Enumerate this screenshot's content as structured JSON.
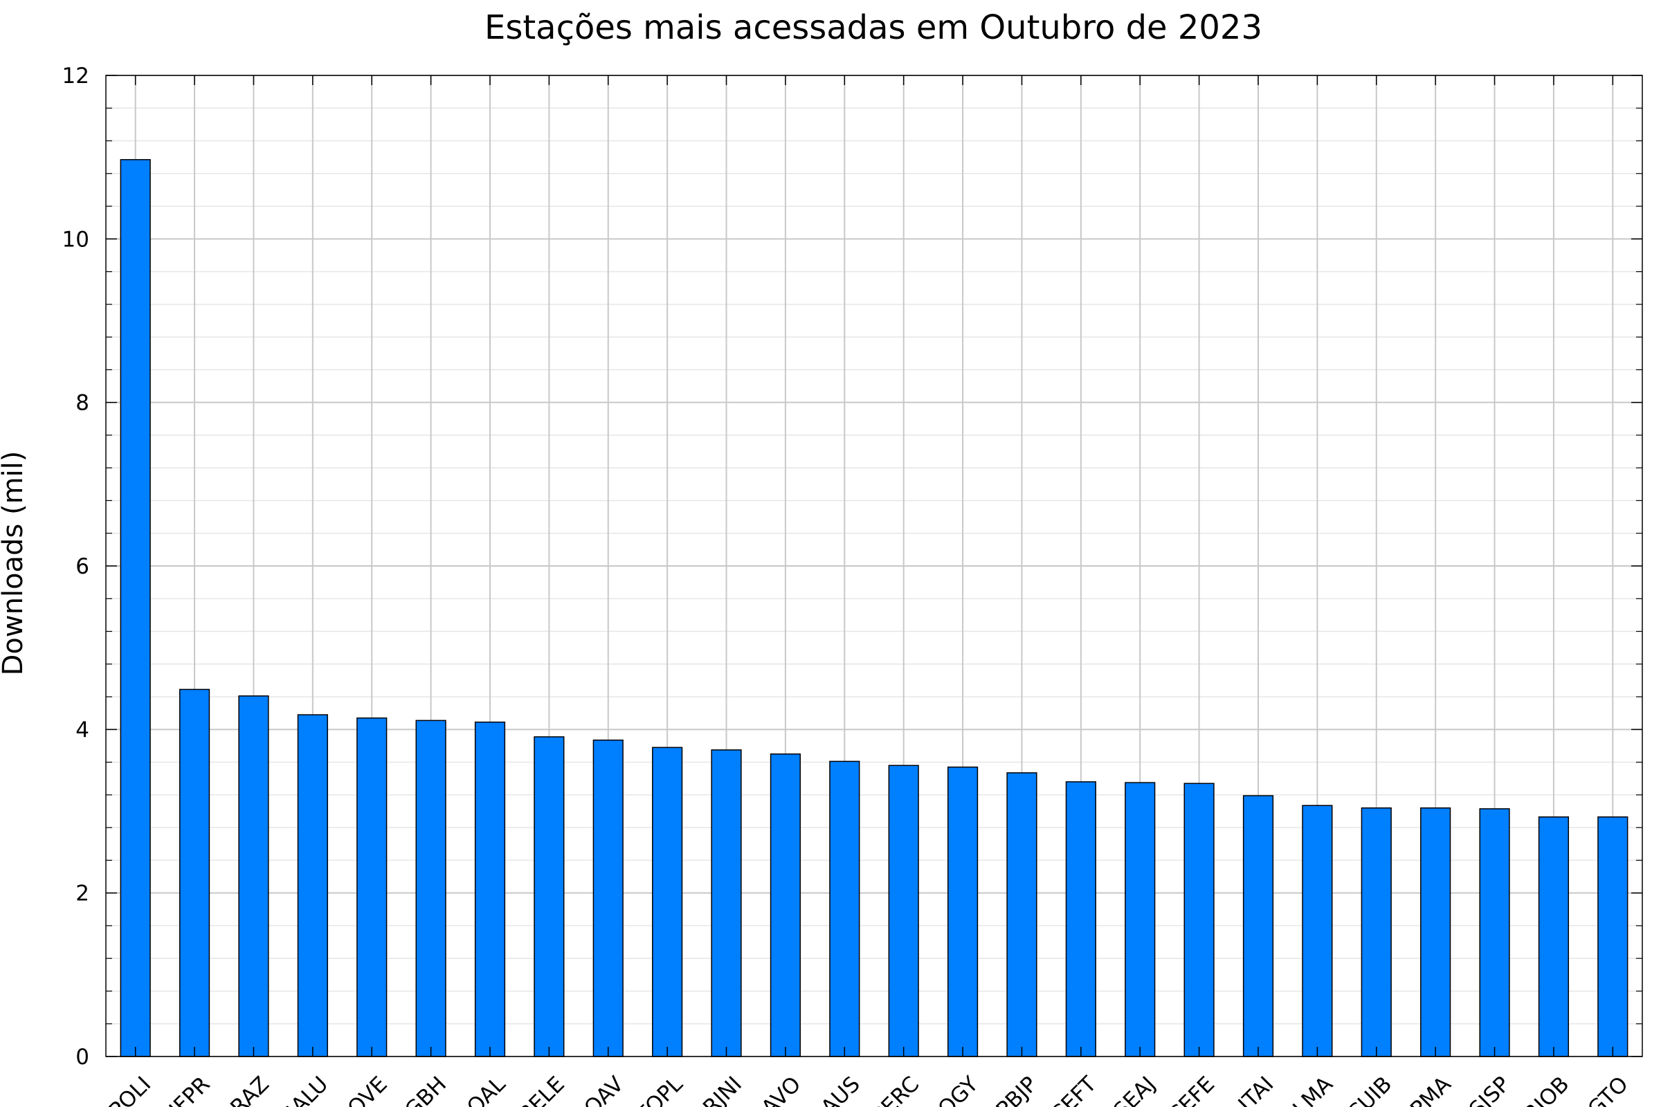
{
  "chart_data": {
    "type": "bar",
    "title": "Estações mais acessadas em Outubro de 2023",
    "xlabel": "",
    "ylabel": "Downloads (mil)",
    "ylim": [
      0,
      12
    ],
    "yticks": [
      "0",
      "2",
      "4",
      "6",
      "8",
      "10",
      "12"
    ],
    "y_minor_step": 0.4,
    "grid": true,
    "legend": "none",
    "bar_color": "#007FFF",
    "categories": [
      "POLI",
      "UFPR",
      "BRAZ",
      "SALU",
      "POVE",
      "MGBH",
      "POAL",
      "BELE",
      "BOAV",
      "TOPL",
      "RJNI",
      "SAVO",
      "NAUS",
      "PERC",
      "GOGY",
      "PBJP",
      "CEFT",
      "SEAJ",
      "CEFE",
      "ITAI",
      "ALMA",
      "CUIB",
      "APMA",
      "SJSP",
      "RIOB",
      "MGTO"
    ],
    "values": [
      10.97,
      4.49,
      4.41,
      4.18,
      4.14,
      4.11,
      4.09,
      3.91,
      3.87,
      3.78,
      3.75,
      3.7,
      3.61,
      3.56,
      3.54,
      3.47,
      3.36,
      3.35,
      3.34,
      3.19,
      3.07,
      3.04,
      3.04,
      3.03,
      2.93,
      2.93
    ]
  }
}
